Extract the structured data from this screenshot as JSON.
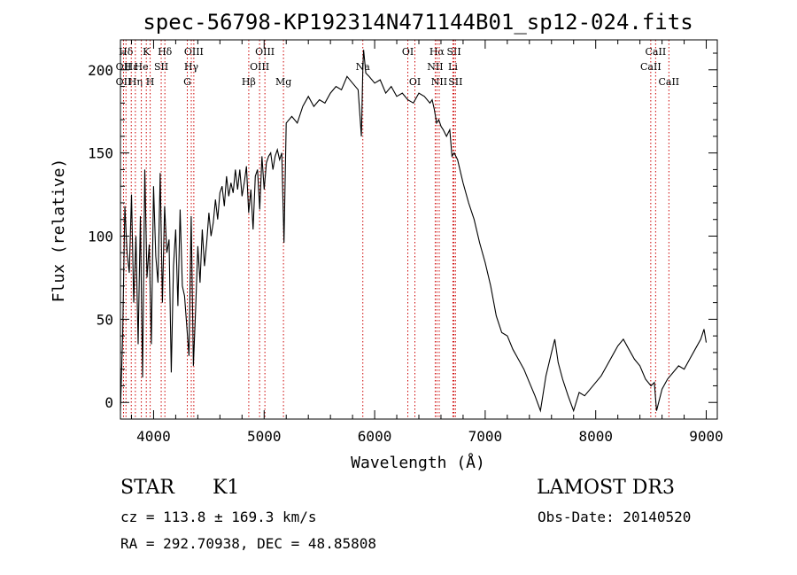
{
  "chart_data": {
    "type": "line",
    "title": "spec-56798-KP192314N471144B01_sp12-024.fits",
    "xlabel": "Wavelength (Å)",
    "ylabel": "Flux (relative)",
    "xlim": [
      3700,
      9100
    ],
    "ylim": [
      -10,
      218
    ],
    "xticks": [
      4000,
      5000,
      6000,
      7000,
      8000,
      9000
    ],
    "yticks": [
      0,
      50,
      100,
      150,
      200
    ],
    "xtick_labels": [
      "4000",
      "5000",
      "6000",
      "7000",
      "8000",
      "9000"
    ],
    "ytick_labels": [
      "0",
      "50",
      "100",
      "150",
      "200"
    ],
    "grid": false,
    "legend": "none",
    "line_color": "#000000",
    "marker_color": "#cc0000",
    "series": [
      {
        "x": [
          3700,
          3720,
          3740,
          3760,
          3780,
          3800,
          3820,
          3840,
          3860,
          3880,
          3900,
          3920,
          3940,
          3960,
          3980,
          4000,
          4020,
          4040,
          4060,
          4080,
          4100,
          4120,
          4140,
          4160,
          4180,
          4200,
          4220,
          4240,
          4260,
          4280,
          4300,
          4320,
          4340,
          4360,
          4380,
          4400,
          4420,
          4440,
          4460,
          4480,
          4500,
          4520,
          4540,
          4560,
          4580,
          4600,
          4620,
          4640,
          4660,
          4680,
          4700,
          4720,
          4740,
          4760,
          4780,
          4800,
          4820,
          4840,
          4860,
          4880,
          4900,
          4920,
          4940,
          4960,
          4980,
          5000,
          5020,
          5040,
          5060,
          5080,
          5100,
          5120,
          5140,
          5160,
          5180,
          5200,
          5250,
          5300,
          5350,
          5400,
          5450,
          5500,
          5550,
          5600,
          5650,
          5700,
          5750,
          5800,
          5850,
          5880,
          5893,
          5900,
          5920,
          5950,
          6000,
          6050,
          6100,
          6150,
          6200,
          6250,
          6300,
          6350,
          6400,
          6450,
          6500,
          6520,
          6540,
          6560,
          6580,
          6600,
          6620,
          6650,
          6680,
          6700,
          6720,
          6750,
          6800,
          6850,
          6900,
          6950,
          7000,
          7050,
          7100,
          7150,
          7200,
          7250,
          7300,
          7350,
          7400,
          7450,
          7500,
          7550,
          7600,
          7630,
          7660,
          7700,
          7750,
          7800,
          7850,
          7900,
          7950,
          8000,
          8050,
          8100,
          8150,
          8200,
          8250,
          8300,
          8350,
          8400,
          8450,
          8500,
          8530,
          8550,
          8600,
          8650,
          8700,
          8750,
          8800,
          8850,
          8900,
          8950,
          8980,
          9000
        ],
        "values": [
          -5,
          40,
          118,
          90,
          78,
          125,
          60,
          100,
          35,
          112,
          15,
          140,
          75,
          95,
          35,
          130,
          88,
          72,
          138,
          60,
          118,
          90,
          98,
          18,
          82,
          104,
          58,
          116,
          70,
          64,
          46,
          28,
          112,
          22,
          56,
          94,
          72,
          104,
          82,
          96,
          114,
          100,
          108,
          122,
          110,
          126,
          130,
          118,
          136,
          124,
          132,
          126,
          140,
          128,
          140,
          124,
          132,
          142,
          114,
          128,
          104,
          136,
          140,
          116,
          148,
          128,
          144,
          148,
          150,
          140,
          148,
          152,
          146,
          150,
          96,
          168,
          172,
          168,
          178,
          184,
          178,
          182,
          180,
          186,
          190,
          188,
          196,
          192,
          188,
          160,
          200,
          212,
          198,
          196,
          192,
          194,
          186,
          190,
          184,
          186,
          182,
          180,
          186,
          184,
          180,
          182,
          176,
          168,
          170,
          166,
          164,
          160,
          164,
          148,
          150,
          146,
          132,
          120,
          110,
          96,
          84,
          70,
          52,
          42,
          40,
          32,
          26,
          20,
          12,
          4,
          -5,
          16,
          30,
          38,
          24,
          14,
          4,
          -5,
          6,
          4,
          8,
          12,
          16,
          22,
          28,
          34,
          38,
          32,
          26,
          22,
          14,
          10,
          12,
          -5,
          8,
          14,
          18,
          22,
          20,
          26,
          32,
          38,
          44,
          36
        ]
      }
    ],
    "line_markers": [
      {
        "label": "Hδ",
        "x": 3750,
        "row": 1
      },
      {
        "label": "OII",
        "x": 3728,
        "row": 2
      },
      {
        "label": "Hε",
        "x": 3798,
        "row": 2
      },
      {
        "label": "OII",
        "x": 3728,
        "row": 3
      },
      {
        "label": "Hη",
        "x": 3835,
        "row": 3
      },
      {
        "label": "K",
        "x": 3934,
        "row": 1
      },
      {
        "label": "H",
        "x": 3969,
        "row": 3
      },
      {
        "label": "He",
        "x": 3889,
        "row": 2
      },
      {
        "label": "SII",
        "x": 4069,
        "row": 2
      },
      {
        "label": "Hδ",
        "x": 4102,
        "row": 1
      },
      {
        "label": "OIII",
        "x": 4364,
        "row": 1
      },
      {
        "label": "Hγ",
        "x": 4341,
        "row": 2
      },
      {
        "label": "G",
        "x": 4305,
        "row": 3
      },
      {
        "label": "Hβ",
        "x": 4861,
        "row": 3
      },
      {
        "label": "OIII",
        "x": 5007,
        "row": 1
      },
      {
        "label": "OIII",
        "x": 4959,
        "row": 2
      },
      {
        "label": "Mg",
        "x": 5175,
        "row": 3
      },
      {
        "label": "Na",
        "x": 5893,
        "row": 2
      },
      {
        "label": "OI",
        "x": 6300,
        "row": 1
      },
      {
        "label": "OI",
        "x": 6364,
        "row": 3
      },
      {
        "label": "Hα",
        "x": 6563,
        "row": 1
      },
      {
        "label": "SII",
        "x": 6717,
        "row": 1
      },
      {
        "label": "NII",
        "x": 6548,
        "row": 2
      },
      {
        "label": "Li",
        "x": 6708,
        "row": 2
      },
      {
        "label": "NII",
        "x": 6584,
        "row": 3
      },
      {
        "label": "SII",
        "x": 6731,
        "row": 3
      },
      {
        "label": "CaII",
        "x": 8542,
        "row": 1
      },
      {
        "label": "CaII",
        "x": 8498,
        "row": 2
      },
      {
        "label": "CaII",
        "x": 8662,
        "row": 3
      }
    ]
  },
  "info": {
    "class": "STAR",
    "subclass": "K1",
    "cz": "cz = 113.8 ± 169.3 km/s",
    "radec": "RA = 292.70938, DEC =  48.85808",
    "survey": "LAMOST DR3",
    "obsdate": "Obs-Date: 20140520"
  }
}
